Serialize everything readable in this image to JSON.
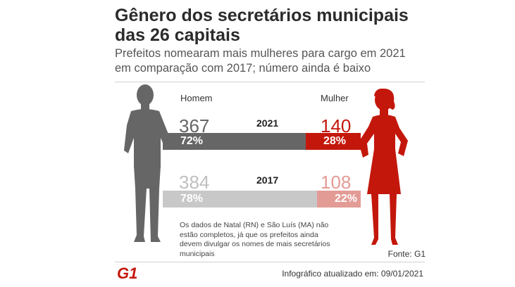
{
  "title": "Gênero dos secretários municipais das 26 capitais",
  "subtitle": "Prefeitos nomearam mais mulheres para cargo em 2021 em comparação com 2017; número ainda é baixo",
  "headers": {
    "men": "Homem",
    "women": "Mulher"
  },
  "note": "Os dados de Natal (RN) e São Luís (MA) não estão completos, já que os prefeitos ainda devem divulgar os nomes de mais secretários municipais",
  "source": "Fonte: G1",
  "updated": "Infográfico atualizado em: 09/01/2021",
  "logo_text": "G1",
  "colors": {
    "men_2021": "#666666",
    "women_2021": "#c4170c",
    "men_2017": "#c8c8c8",
    "women_2017": "#e39b96",
    "men_count_2021": "#666666",
    "women_count_2021": "#c4170c",
    "men_count_2017": "#c0c0c0",
    "women_count_2017": "#e39b96"
  },
  "chart_data": {
    "type": "bar",
    "categories": [
      "2021",
      "2017"
    ],
    "series": [
      {
        "name": "Homem",
        "values": [
          367,
          384
        ],
        "percent_labels": [
          "72%",
          "78%"
        ],
        "count_labels": [
          "367",
          "384"
        ]
      },
      {
        "name": "Mulher",
        "values": [
          140,
          108
        ],
        "percent_labels": [
          "28%",
          "22%"
        ],
        "count_labels": [
          "140",
          "108"
        ]
      }
    ]
  }
}
